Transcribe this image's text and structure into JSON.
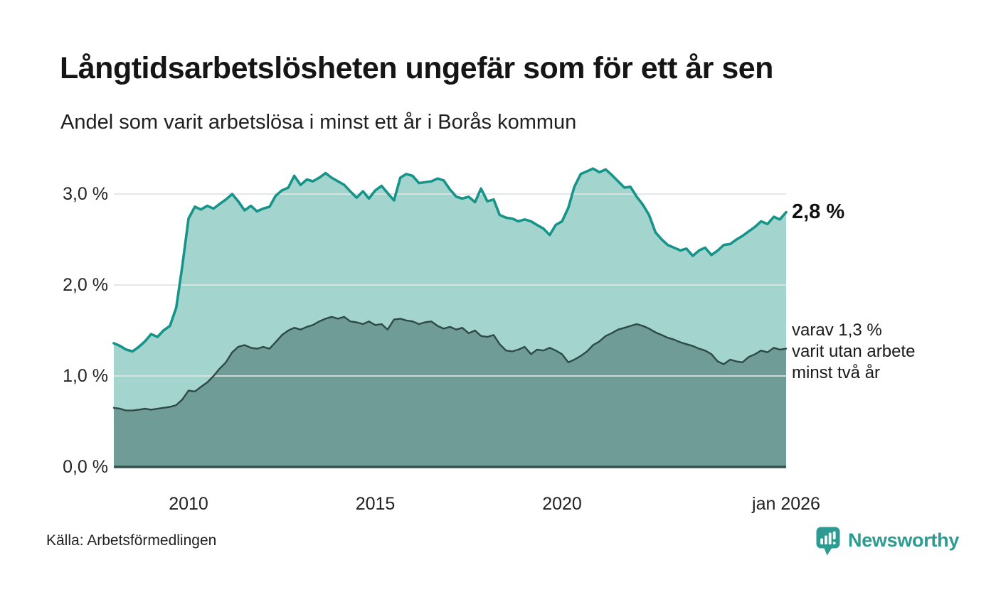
{
  "header": {
    "title": "Långtidsarbetslösheten ungefär som för ett år sen",
    "subtitle": "Andel som varit arbetslösa i minst ett år i Borås kommun"
  },
  "annotations": {
    "primary": "2,8 %",
    "secondary_lines": [
      "varav 1,3 %",
      "varit utan arbete",
      "minst två år"
    ]
  },
  "footer": {
    "source": "Källa: Arbetsförmedlingen",
    "brand": "Newsworthy"
  },
  "colors": {
    "line_1yr": "#16948a",
    "fill_1yr": "#a4d4ce",
    "line_2yr": "#2e4a46",
    "fill_2yr": "#6f9c96",
    "gridline": "#dfe3e5",
    "axis_line": "#33504b",
    "brand_teal": "#2d9b91",
    "text": "#1a1a1a"
  },
  "chart_data": {
    "type": "area",
    "title": "Långtidsarbetslösheten ungefär som för ett år sen",
    "subtitle": "Andel som varit arbetslösa i minst ett år i Borås kommun",
    "unit": "%",
    "x_range": [
      2008,
      2026
    ],
    "ylim": [
      0,
      3.45
    ],
    "grid": true,
    "legend_position": "right-annotations",
    "yticks": [
      {
        "v": 0,
        "label": "0,0 %"
      },
      {
        "v": 1,
        "label": "1,0 %"
      },
      {
        "v": 2,
        "label": "2,0 %"
      },
      {
        "v": 3,
        "label": "3,0 %"
      }
    ],
    "xticks": [
      {
        "v": 2010,
        "label": "2010"
      },
      {
        "v": 2015,
        "label": "2015"
      },
      {
        "v": 2020,
        "label": "2020"
      },
      {
        "v": 2026,
        "label": "jan 2026"
      }
    ],
    "series": [
      {
        "name": "Arbetslösa minst ett år",
        "end_label": "2,8 %",
        "latest_value": 2.8,
        "line_color": "#16948a",
        "fill_color": "#a4d4ce",
        "points": [
          [
            2008.0,
            1.36
          ],
          [
            2008.17,
            1.33
          ],
          [
            2008.33,
            1.29
          ],
          [
            2008.5,
            1.27
          ],
          [
            2008.67,
            1.32
          ],
          [
            2008.83,
            1.38
          ],
          [
            2009.0,
            1.46
          ],
          [
            2009.17,
            1.43
          ],
          [
            2009.33,
            1.5
          ],
          [
            2009.5,
            1.55
          ],
          [
            2009.67,
            1.75
          ],
          [
            2009.83,
            2.2
          ],
          [
            2010.0,
            2.73
          ],
          [
            2010.17,
            2.86
          ],
          [
            2010.33,
            2.83
          ],
          [
            2010.5,
            2.87
          ],
          [
            2010.67,
            2.84
          ],
          [
            2010.83,
            2.89
          ],
          [
            2011.0,
            2.94
          ],
          [
            2011.17,
            3.0
          ],
          [
            2011.33,
            2.92
          ],
          [
            2011.5,
            2.82
          ],
          [
            2011.67,
            2.87
          ],
          [
            2011.83,
            2.81
          ],
          [
            2012.0,
            2.84
          ],
          [
            2012.17,
            2.86
          ],
          [
            2012.33,
            2.98
          ],
          [
            2012.5,
            3.04
          ],
          [
            2012.67,
            3.07
          ],
          [
            2012.83,
            3.2
          ],
          [
            2013.0,
            3.1
          ],
          [
            2013.17,
            3.16
          ],
          [
            2013.33,
            3.14
          ],
          [
            2013.5,
            3.18
          ],
          [
            2013.67,
            3.23
          ],
          [
            2013.83,
            3.18
          ],
          [
            2014.0,
            3.14
          ],
          [
            2014.17,
            3.1
          ],
          [
            2014.33,
            3.03
          ],
          [
            2014.5,
            2.96
          ],
          [
            2014.67,
            3.03
          ],
          [
            2014.83,
            2.95
          ],
          [
            2015.0,
            3.04
          ],
          [
            2015.17,
            3.09
          ],
          [
            2015.33,
            3.01
          ],
          [
            2015.5,
            2.93
          ],
          [
            2015.67,
            3.18
          ],
          [
            2015.83,
            3.22
          ],
          [
            2016.0,
            3.2
          ],
          [
            2016.17,
            3.12
          ],
          [
            2016.33,
            3.13
          ],
          [
            2016.5,
            3.14
          ],
          [
            2016.67,
            3.17
          ],
          [
            2016.83,
            3.15
          ],
          [
            2017.0,
            3.05
          ],
          [
            2017.17,
            2.97
          ],
          [
            2017.33,
            2.95
          ],
          [
            2017.5,
            2.97
          ],
          [
            2017.67,
            2.91
          ],
          [
            2017.83,
            3.06
          ],
          [
            2018.0,
            2.92
          ],
          [
            2018.17,
            2.94
          ],
          [
            2018.33,
            2.77
          ],
          [
            2018.5,
            2.74
          ],
          [
            2018.67,
            2.73
          ],
          [
            2018.83,
            2.7
          ],
          [
            2019.0,
            2.72
          ],
          [
            2019.17,
            2.7
          ],
          [
            2019.33,
            2.66
          ],
          [
            2019.5,
            2.62
          ],
          [
            2019.67,
            2.55
          ],
          [
            2019.83,
            2.66
          ],
          [
            2020.0,
            2.7
          ],
          [
            2020.17,
            2.85
          ],
          [
            2020.33,
            3.08
          ],
          [
            2020.5,
            3.22
          ],
          [
            2020.67,
            3.25
          ],
          [
            2020.83,
            3.28
          ],
          [
            2021.0,
            3.24
          ],
          [
            2021.17,
            3.27
          ],
          [
            2021.33,
            3.21
          ],
          [
            2021.5,
            3.14
          ],
          [
            2021.67,
            3.07
          ],
          [
            2021.83,
            3.08
          ],
          [
            2022.0,
            2.97
          ],
          [
            2022.17,
            2.88
          ],
          [
            2022.33,
            2.77
          ],
          [
            2022.5,
            2.58
          ],
          [
            2022.67,
            2.5
          ],
          [
            2022.83,
            2.44
          ],
          [
            2023.0,
            2.41
          ],
          [
            2023.17,
            2.38
          ],
          [
            2023.33,
            2.4
          ],
          [
            2023.5,
            2.32
          ],
          [
            2023.67,
            2.38
          ],
          [
            2023.83,
            2.41
          ],
          [
            2024.0,
            2.33
          ],
          [
            2024.17,
            2.38
          ],
          [
            2024.33,
            2.44
          ],
          [
            2024.5,
            2.45
          ],
          [
            2024.67,
            2.5
          ],
          [
            2024.83,
            2.54
          ],
          [
            2025.0,
            2.59
          ],
          [
            2025.17,
            2.64
          ],
          [
            2025.33,
            2.7
          ],
          [
            2025.5,
            2.67
          ],
          [
            2025.67,
            2.75
          ],
          [
            2025.83,
            2.72
          ],
          [
            2026.0,
            2.8
          ]
        ]
      },
      {
        "name": "Varav utan arbete minst två år",
        "end_label": "varav 1,3 % varit utan arbete minst två år",
        "latest_value": 1.3,
        "line_color": "#2e4a46",
        "fill_color": "#6f9c96",
        "points": [
          [
            2008.0,
            0.65
          ],
          [
            2008.17,
            0.64
          ],
          [
            2008.33,
            0.62
          ],
          [
            2008.5,
            0.62
          ],
          [
            2008.67,
            0.63
          ],
          [
            2008.83,
            0.64
          ],
          [
            2009.0,
            0.63
          ],
          [
            2009.17,
            0.64
          ],
          [
            2009.33,
            0.65
          ],
          [
            2009.5,
            0.66
          ],
          [
            2009.67,
            0.68
          ],
          [
            2009.83,
            0.74
          ],
          [
            2010.0,
            0.84
          ],
          [
            2010.17,
            0.83
          ],
          [
            2010.33,
            0.88
          ],
          [
            2010.5,
            0.93
          ],
          [
            2010.67,
            1.0
          ],
          [
            2010.83,
            1.08
          ],
          [
            2011.0,
            1.15
          ],
          [
            2011.17,
            1.26
          ],
          [
            2011.33,
            1.32
          ],
          [
            2011.5,
            1.34
          ],
          [
            2011.67,
            1.31
          ],
          [
            2011.83,
            1.3
          ],
          [
            2012.0,
            1.32
          ],
          [
            2012.17,
            1.3
          ],
          [
            2012.33,
            1.37
          ],
          [
            2012.5,
            1.45
          ],
          [
            2012.67,
            1.5
          ],
          [
            2012.83,
            1.53
          ],
          [
            2013.0,
            1.51
          ],
          [
            2013.17,
            1.54
          ],
          [
            2013.33,
            1.56
          ],
          [
            2013.5,
            1.6
          ],
          [
            2013.67,
            1.63
          ],
          [
            2013.83,
            1.65
          ],
          [
            2014.0,
            1.63
          ],
          [
            2014.17,
            1.65
          ],
          [
            2014.33,
            1.6
          ],
          [
            2014.5,
            1.59
          ],
          [
            2014.67,
            1.57
          ],
          [
            2014.83,
            1.6
          ],
          [
            2015.0,
            1.56
          ],
          [
            2015.17,
            1.57
          ],
          [
            2015.33,
            1.51
          ],
          [
            2015.5,
            1.62
          ],
          [
            2015.67,
            1.63
          ],
          [
            2015.83,
            1.61
          ],
          [
            2016.0,
            1.6
          ],
          [
            2016.17,
            1.57
          ],
          [
            2016.33,
            1.59
          ],
          [
            2016.5,
            1.6
          ],
          [
            2016.67,
            1.55
          ],
          [
            2016.83,
            1.52
          ],
          [
            2017.0,
            1.54
          ],
          [
            2017.17,
            1.51
          ],
          [
            2017.33,
            1.53
          ],
          [
            2017.5,
            1.47
          ],
          [
            2017.67,
            1.5
          ],
          [
            2017.83,
            1.44
          ],
          [
            2018.0,
            1.43
          ],
          [
            2018.17,
            1.45
          ],
          [
            2018.33,
            1.35
          ],
          [
            2018.5,
            1.28
          ],
          [
            2018.67,
            1.27
          ],
          [
            2018.83,
            1.29
          ],
          [
            2019.0,
            1.32
          ],
          [
            2019.17,
            1.24
          ],
          [
            2019.33,
            1.29
          ],
          [
            2019.5,
            1.28
          ],
          [
            2019.67,
            1.31
          ],
          [
            2019.83,
            1.28
          ],
          [
            2020.0,
            1.24
          ],
          [
            2020.17,
            1.15
          ],
          [
            2020.33,
            1.18
          ],
          [
            2020.5,
            1.22
          ],
          [
            2020.67,
            1.27
          ],
          [
            2020.83,
            1.34
          ],
          [
            2021.0,
            1.38
          ],
          [
            2021.17,
            1.44
          ],
          [
            2021.33,
            1.47
          ],
          [
            2021.5,
            1.51
          ],
          [
            2021.67,
            1.53
          ],
          [
            2021.83,
            1.55
          ],
          [
            2022.0,
            1.57
          ],
          [
            2022.17,
            1.55
          ],
          [
            2022.33,
            1.52
          ],
          [
            2022.5,
            1.48
          ],
          [
            2022.67,
            1.45
          ],
          [
            2022.83,
            1.42
          ],
          [
            2023.0,
            1.4
          ],
          [
            2023.17,
            1.37
          ],
          [
            2023.33,
            1.35
          ],
          [
            2023.5,
            1.33
          ],
          [
            2023.67,
            1.3
          ],
          [
            2023.83,
            1.28
          ],
          [
            2024.0,
            1.24
          ],
          [
            2024.17,
            1.16
          ],
          [
            2024.33,
            1.13
          ],
          [
            2024.5,
            1.18
          ],
          [
            2024.67,
            1.16
          ],
          [
            2024.83,
            1.15
          ],
          [
            2025.0,
            1.21
          ],
          [
            2025.17,
            1.24
          ],
          [
            2025.33,
            1.28
          ],
          [
            2025.5,
            1.26
          ],
          [
            2025.67,
            1.31
          ],
          [
            2025.83,
            1.29
          ],
          [
            2026.0,
            1.3
          ]
        ]
      }
    ]
  }
}
